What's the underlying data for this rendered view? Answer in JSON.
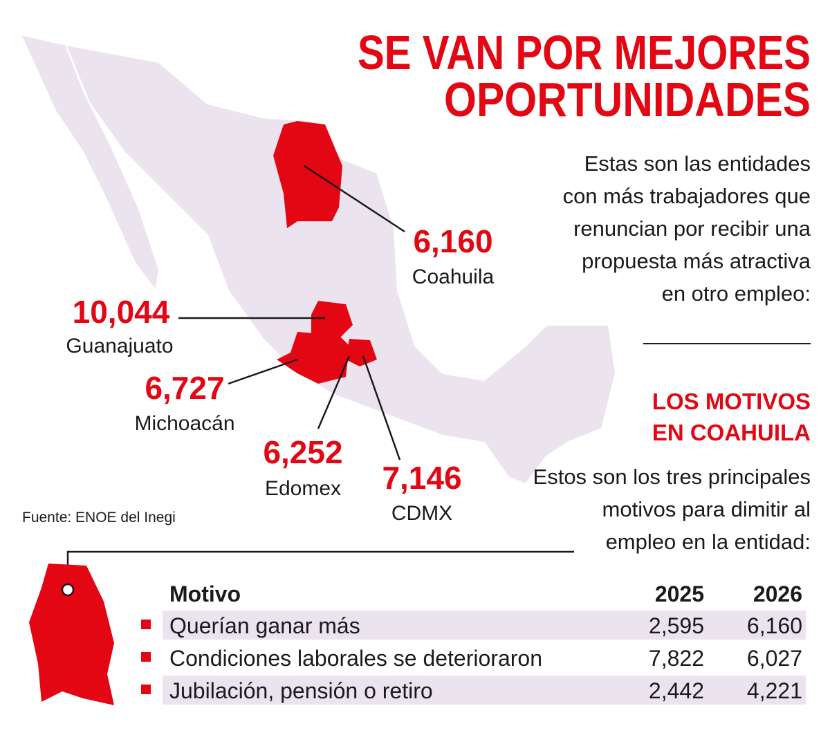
{
  "header": {
    "title_lines": [
      "SE VAN POR MEJORES",
      "OPORTUNIDADES"
    ],
    "intro_lines": [
      "Estas son las entidades",
      "con más trabajadores que",
      "renuncian por recibir una",
      "propuesta más atractiva",
      "en otro empleo:"
    ]
  },
  "map": {
    "labels": [
      {
        "value": "6,160",
        "name": "Coahuila"
      },
      {
        "value": "10,044",
        "name": "Guanajuato"
      },
      {
        "value": "6,727",
        "name": "Michoacán"
      },
      {
        "value": "6,252",
        "name": "Edomex"
      },
      {
        "value": "7,146",
        "name": "CDMX"
      }
    ],
    "source": "Fuente: ENOE del Inegi"
  },
  "motives": {
    "heading_lines": [
      "LOS MOTIVOS",
      "EN COAHUILA"
    ],
    "intro_lines": [
      "Estos son los tres principales",
      "motivos para dimitir al",
      "empleo en la entidad:"
    ]
  },
  "table": {
    "header": [
      "Motivo",
      "2025",
      "2026"
    ],
    "rows": [
      [
        "Querían ganar más",
        "2,595",
        "6,160"
      ],
      [
        "Condiciones laborales se deterioraron",
        "7,822",
        "6,027"
      ],
      [
        "Jubilación, pensión o retiro",
        "2,442",
        "4,221"
      ]
    ]
  }
}
